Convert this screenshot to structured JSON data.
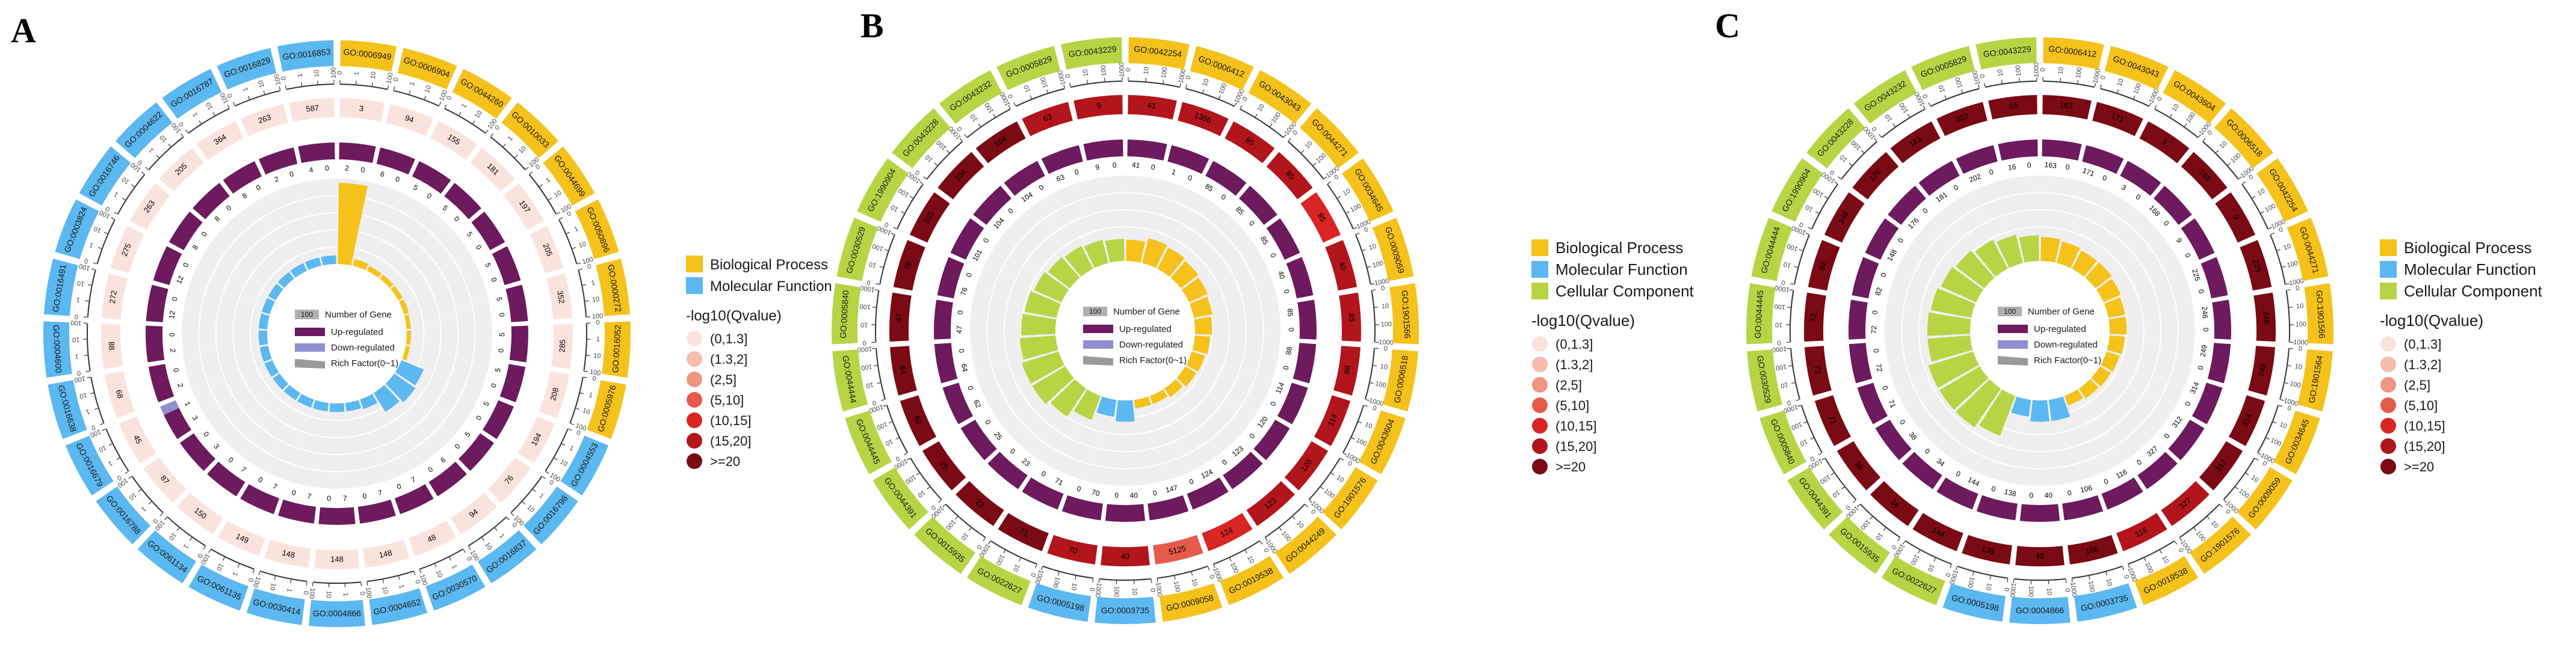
{
  "colors": {
    "biological_process": "#f5c21b",
    "molecular_function": "#5bb8f0",
    "cellular_component": "#b8d445",
    "up_regulated": "#6d1a5e",
    "down_regulated": "#8f8fd1",
    "rich_factor": "#9a9a9a",
    "grid_bg": "#efefef",
    "q_scale": [
      "#fbe3dd",
      "#f6bcac",
      "#ef9582",
      "#e55a4a",
      "#d92523",
      "#b3151c",
      "#7a0a14"
    ]
  },
  "legend_common": {
    "number_of_gene_box": "100",
    "number_of_gene": "Number of Gene",
    "up_regulated": "Up-regulated",
    "down_regulated": "Down-regulated",
    "rich_factor": "Rich Factor(0~1)",
    "qvalue_title": "-log10(Qvalue)",
    "qvalue_bins": [
      "(0,1.3]",
      "(1.3,2]",
      "(2,5]",
      "(5,10]",
      "(10,15]",
      "(15,20]",
      ">=20"
    ],
    "category_names": {
      "biological_process": "Biological Process",
      "molecular_function": "Molecular Function",
      "cellular_component": "Cellular Component"
    }
  },
  "chart_data": [
    {
      "type": "circos-go-enrichment",
      "panel": "A",
      "categories_shown": [
        "biological_process",
        "molecular_function"
      ],
      "scale_labels": [
        "0",
        "1",
        "10",
        "100"
      ],
      "terms": [
        {
          "id": "GO:0006949",
          "category": "biological_process",
          "genes": 3,
          "up": 2,
          "down": 0,
          "q": 1,
          "rich": 0.95
        },
        {
          "id": "GO:0006904",
          "category": "biological_process",
          "genes": 94,
          "up": 6,
          "down": 0,
          "q": 1,
          "rich": 0.08
        },
        {
          "id": "GO:0044260",
          "category": "biological_process",
          "genes": 155,
          "up": 5,
          "down": 0,
          "q": 1,
          "rich": 0.06
        },
        {
          "id": "GO:0010033",
          "category": "biological_process",
          "genes": 181,
          "up": 5,
          "down": 0,
          "q": 1,
          "rich": 0.06
        },
        {
          "id": "GO:0044699",
          "category": "biological_process",
          "genes": 197,
          "up": 5,
          "down": 0,
          "q": 1,
          "rich": 0.06
        },
        {
          "id": "GO:0050896",
          "category": "biological_process",
          "genes": 205,
          "up": 5,
          "down": 0,
          "q": 1,
          "rich": 0.06
        },
        {
          "id": "GO:0000272",
          "category": "biological_process",
          "genes": 352,
          "up": 5,
          "down": 0,
          "q": 1,
          "rich": 0.05
        },
        {
          "id": "GO:0016052",
          "category": "biological_process",
          "genes": 285,
          "up": 5,
          "down": 0,
          "q": 1,
          "rich": 0.05
        },
        {
          "id": "GO:0005976",
          "category": "biological_process",
          "genes": 208,
          "up": 5,
          "down": 0,
          "q": 1,
          "rich": 0.05
        },
        {
          "id": "GO:0004553",
          "category": "molecular_function",
          "genes": 194,
          "up": 5,
          "down": 0,
          "q": 1,
          "rich": 0.28
        },
        {
          "id": "GO:0016798",
          "category": "molecular_function",
          "genes": 76,
          "up": 5,
          "down": 0,
          "q": 1,
          "rich": 0.3
        },
        {
          "id": "GO:0016837",
          "category": "molecular_function",
          "genes": 94,
          "up": 6,
          "down": 0,
          "q": 1,
          "rich": 0.26
        },
        {
          "id": "GO:0030570",
          "category": "molecular_function",
          "genes": 48,
          "up": 7,
          "down": 0,
          "q": 1,
          "rich": 0.12
        },
        {
          "id": "GO:0004652",
          "category": "molecular_function",
          "genes": 148,
          "up": 7,
          "down": 0,
          "q": 1,
          "rich": 0.1
        },
        {
          "id": "GO:0004866",
          "category": "molecular_function",
          "genes": 148,
          "up": 7,
          "down": 0,
          "q": 1,
          "rich": 0.1
        },
        {
          "id": "GO:0030414",
          "category": "molecular_function",
          "genes": 148,
          "up": 7,
          "down": 0,
          "q": 1,
          "rich": 0.1
        },
        {
          "id": "GO:0061135",
          "category": "molecular_function",
          "genes": 149,
          "up": 7,
          "down": 0,
          "q": 1,
          "rich": 0.1
        },
        {
          "id": "GO:0061134",
          "category": "molecular_function",
          "genes": 150,
          "up": 7,
          "down": 0,
          "q": 1,
          "rich": 0.1
        },
        {
          "id": "GO:0016788",
          "category": "molecular_function",
          "genes": 87,
          "up": 3,
          "down": 0,
          "q": 1,
          "rich": 0.1
        },
        {
          "id": "GO:0016679",
          "category": "molecular_function",
          "genes": 45,
          "up": 3,
          "down": 1,
          "q": 1,
          "rich": 0.1
        },
        {
          "id": "GO:0016638",
          "category": "molecular_function",
          "genes": 68,
          "up": 2,
          "down": 0,
          "q": 1,
          "rich": 0.1
        },
        {
          "id": "GO:0004600",
          "category": "molecular_function",
          "genes": 88,
          "up": 2,
          "down": 0,
          "q": 1,
          "rich": 0.1
        },
        {
          "id": "GO:0016491",
          "category": "molecular_function",
          "genes": 272,
          "up": 12,
          "down": 0,
          "q": 1,
          "rich": 0.1
        },
        {
          "id": "GO:0003824",
          "category": "molecular_function",
          "genes": 275,
          "up": 12,
          "down": 0,
          "q": 1,
          "rich": 0.1
        },
        {
          "id": "GO:0016746",
          "category": "molecular_function",
          "genes": 263,
          "up": 8,
          "down": 0,
          "q": 1,
          "rich": 0.1
        },
        {
          "id": "GO:0004622",
          "category": "molecular_function",
          "genes": 205,
          "up": 8,
          "down": 0,
          "q": 1,
          "rich": 0.1
        },
        {
          "id": "GO:0016787",
          "category": "molecular_function",
          "genes": 364,
          "up": 8,
          "down": 0,
          "q": 1,
          "rich": 0.1
        },
        {
          "id": "GO:0016829",
          "category": "molecular_function",
          "genes": 263,
          "up": 2,
          "down": 0,
          "q": 1,
          "rich": 0.1
        },
        {
          "id": "GO:0016853",
          "category": "molecular_function",
          "genes": 587,
          "up": 4,
          "down": 0,
          "q": 1,
          "rich": 0.1
        }
      ]
    },
    {
      "type": "circos-go-enrichment",
      "panel": "B",
      "categories_shown": [
        "biological_process",
        "molecular_function",
        "cellular_component"
      ],
      "scale_labels": [
        "0",
        "10",
        "100",
        "1000"
      ],
      "terms": [
        {
          "id": "GO:0042254",
          "category": "biological_process",
          "genes": 41,
          "up": 41,
          "down": 0,
          "q": 6,
          "rich": 0.25
        },
        {
          "id": "GO:0006412",
          "category": "biological_process",
          "genes": 1366,
          "up": 1,
          "down": 0,
          "q": 6,
          "rich": 0.3
        },
        {
          "id": "GO:0043043",
          "category": "biological_process",
          "genes": 85,
          "up": 85,
          "down": 0,
          "q": 6,
          "rich": 0.28
        },
        {
          "id": "GO:0044271",
          "category": "biological_process",
          "genes": 85,
          "up": 85,
          "down": 0,
          "q": 6,
          "rich": 0.26
        },
        {
          "id": "GO:0034645",
          "category": "biological_process",
          "genes": 85,
          "up": 85,
          "down": 0,
          "q": 5,
          "rich": 0.24
        },
        {
          "id": "GO:0009059",
          "category": "biological_process",
          "genes": 40,
          "up": 40,
          "down": 0,
          "q": 6,
          "rich": 0.22
        },
        {
          "id": "GO:1901566",
          "category": "biological_process",
          "genes": 85,
          "up": 85,
          "down": 0,
          "q": 6,
          "rich": 0.2
        },
        {
          "id": "GO:0006518",
          "category": "biological_process",
          "genes": 88,
          "up": 88,
          "down": 0,
          "q": 6,
          "rich": 0.18
        },
        {
          "id": "GO:0043604",
          "category": "biological_process",
          "genes": 114,
          "up": 114,
          "down": 0,
          "q": 6,
          "rich": 0.16
        },
        {
          "id": "GO:1901576",
          "category": "biological_process",
          "genes": 120,
          "up": 120,
          "down": 0,
          "q": 6,
          "rich": 0.15
        },
        {
          "id": "GO:0044249",
          "category": "biological_process",
          "genes": 123,
          "up": 123,
          "down": 0,
          "q": 6,
          "rich": 0.12
        },
        {
          "id": "GO:0019538",
          "category": "biological_process",
          "genes": 124,
          "up": 124,
          "down": 0,
          "q": 5,
          "rich": 0.1
        },
        {
          "id": "GO:0009058",
          "category": "biological_process",
          "genes": 5125,
          "up": 147,
          "down": 0,
          "q": 4,
          "rich": 0.1
        },
        {
          "id": "GO:0003735",
          "category": "molecular_function",
          "genes": 40,
          "up": 40,
          "down": 0,
          "q": 6,
          "rich": 0.25
        },
        {
          "id": "GO:0005198",
          "category": "molecular_function",
          "genes": 70,
          "up": 70,
          "down": 0,
          "q": 6,
          "rich": 0.2
        },
        {
          "id": "GO:0022627",
          "category": "cellular_component",
          "genes": 71,
          "up": 71,
          "down": 0,
          "q": 7,
          "rich": 0.3
        },
        {
          "id": "GO:0015935",
          "category": "cellular_component",
          "genes": 23,
          "up": 23,
          "down": 0,
          "q": 7,
          "rich": 0.4
        },
        {
          "id": "GO:0044391",
          "category": "cellular_component",
          "genes": 25,
          "up": 25,
          "down": 0,
          "q": 7,
          "rich": 0.45
        },
        {
          "id": "GO:0044445",
          "category": "cellular_component",
          "genes": 62,
          "up": 62,
          "down": 0,
          "q": 7,
          "rich": 0.45
        },
        {
          "id": "GO:0044444",
          "category": "cellular_component",
          "genes": 64,
          "up": 64,
          "down": 0,
          "q": 7,
          "rich": 0.42
        },
        {
          "id": "GO:0005840",
          "category": "cellular_component",
          "genes": 47,
          "up": 47,
          "down": 0,
          "q": 7,
          "rich": 0.4
        },
        {
          "id": "GO:0030529",
          "category": "cellular_component",
          "genes": 76,
          "up": 76,
          "down": 0,
          "q": 7,
          "rich": 0.38
        },
        {
          "id": "GO:1990904",
          "category": "cellular_component",
          "genes": 101,
          "up": 101,
          "down": 0,
          "q": 7,
          "rich": 0.35
        },
        {
          "id": "GO:0043228",
          "category": "cellular_component",
          "genes": 104,
          "up": 104,
          "down": 0,
          "q": 7,
          "rich": 0.32
        },
        {
          "id": "GO:0043232",
          "category": "cellular_component",
          "genes": 104,
          "up": 104,
          "down": 0,
          "q": 7,
          "rich": 0.3
        },
        {
          "id": "GO:0005829",
          "category": "cellular_component",
          "genes": 63,
          "up": 63,
          "down": 0,
          "q": 6,
          "rich": 0.28
        },
        {
          "id": "GO:0043229",
          "category": "cellular_component",
          "genes": 9,
          "up": 9,
          "down": 0,
          "q": 6,
          "rich": 0.26
        }
      ]
    },
    {
      "type": "circos-go-enrichment",
      "panel": "C",
      "categories_shown": [
        "biological_process",
        "molecular_function",
        "cellular_component"
      ],
      "scale_labels": [
        "0",
        "10",
        "100",
        "1000"
      ],
      "terms": [
        {
          "id": "GO:0006412",
          "category": "biological_process",
          "genes": 163,
          "up": 163,
          "down": 0,
          "q": 7,
          "rich": 0.28
        },
        {
          "id": "GO:0043043",
          "category": "biological_process",
          "genes": 171,
          "up": 171,
          "down": 0,
          "q": 7,
          "rich": 0.26
        },
        {
          "id": "GO:0043604",
          "category": "biological_process",
          "genes": 3,
          "up": 3,
          "down": 0,
          "q": 7,
          "rich": 0.24
        },
        {
          "id": "GO:0006518",
          "category": "biological_process",
          "genes": 168,
          "up": 168,
          "down": 0,
          "q": 7,
          "rich": 0.24
        },
        {
          "id": "GO:0042254",
          "category": "biological_process",
          "genes": 9,
          "up": 9,
          "down": 0,
          "q": 7,
          "rich": 0.22
        },
        {
          "id": "GO:0044271",
          "category": "biological_process",
          "genes": 225,
          "up": 225,
          "down": 0,
          "q": 7,
          "rich": 0.2
        },
        {
          "id": "GO:1901566",
          "category": "biological_process",
          "genes": 246,
          "up": 246,
          "down": 0,
          "q": 7,
          "rich": 0.2
        },
        {
          "id": "GO:1901564",
          "category": "biological_process",
          "genes": 249,
          "up": 249,
          "down": 0,
          "q": 7,
          "rich": 0.18
        },
        {
          "id": "GO:0034645",
          "category": "biological_process",
          "genes": 314,
          "up": 314,
          "down": 0,
          "q": 7,
          "rich": 0.16
        },
        {
          "id": "GO:0009059",
          "category": "biological_process",
          "genes": 312,
          "up": 312,
          "down": 0,
          "q": 7,
          "rich": 0.15
        },
        {
          "id": "GO:1901576",
          "category": "biological_process",
          "genes": 327,
          "up": 327,
          "down": 0,
          "q": 6,
          "rich": 0.14
        },
        {
          "id": "GO:0019538",
          "category": "biological_process",
          "genes": 116,
          "up": 116,
          "down": 0,
          "q": 6,
          "rich": 0.12
        },
        {
          "id": "GO:0003735",
          "category": "molecular_function",
          "genes": 106,
          "up": 106,
          "down": 0,
          "q": 7,
          "rich": 0.25
        },
        {
          "id": "GO:0004866",
          "category": "molecular_function",
          "genes": 40,
          "up": 40,
          "down": 0,
          "q": 7,
          "rich": 0.25
        },
        {
          "id": "GO:0005198",
          "category": "molecular_function",
          "genes": 138,
          "up": 138,
          "down": 0,
          "q": 7,
          "rich": 0.2
        },
        {
          "id": "GO:0022627",
          "category": "cellular_component",
          "genes": 144,
          "up": 144,
          "down": 0,
          "q": 7,
          "rich": 0.5
        },
        {
          "id": "GO:0015935",
          "category": "cellular_component",
          "genes": 34,
          "up": 34,
          "down": 0,
          "q": 7,
          "rich": 0.55
        },
        {
          "id": "GO:0044391",
          "category": "cellular_component",
          "genes": 38,
          "up": 38,
          "down": 0,
          "q": 7,
          "rich": 0.55
        },
        {
          "id": "GO:0005840",
          "category": "cellular_component",
          "genes": 71,
          "up": 71,
          "down": 0,
          "q": 7,
          "rich": 0.55
        },
        {
          "id": "GO:0030529",
          "category": "cellular_component",
          "genes": 72,
          "up": 72,
          "down": 0,
          "q": 7,
          "rich": 0.5
        },
        {
          "id": "GO:0044445",
          "category": "cellular_component",
          "genes": 72,
          "up": 72,
          "down": 0,
          "q": 7,
          "rich": 0.5
        },
        {
          "id": "GO:0044444",
          "category": "cellular_component",
          "genes": 82,
          "up": 82,
          "down": 0,
          "q": 7,
          "rich": 0.48
        },
        {
          "id": "GO:1990904",
          "category": "cellular_component",
          "genes": 148,
          "up": 148,
          "down": 0,
          "q": 7,
          "rich": 0.45
        },
        {
          "id": "GO:0043228",
          "category": "cellular_component",
          "genes": 176,
          "up": 176,
          "down": 0,
          "q": 7,
          "rich": 0.42
        },
        {
          "id": "GO:0043232",
          "category": "cellular_component",
          "genes": 181,
          "up": 181,
          "down": 0,
          "q": 7,
          "rich": 0.38
        },
        {
          "id": "GO:0005829",
          "category": "cellular_component",
          "genes": 202,
          "up": 202,
          "down": 0,
          "q": 7,
          "rich": 0.34
        },
        {
          "id": "GO:0043229",
          "category": "cellular_component",
          "genes": 16,
          "up": 16,
          "down": 0,
          "q": 7,
          "rich": 0.3
        }
      ]
    }
  ]
}
